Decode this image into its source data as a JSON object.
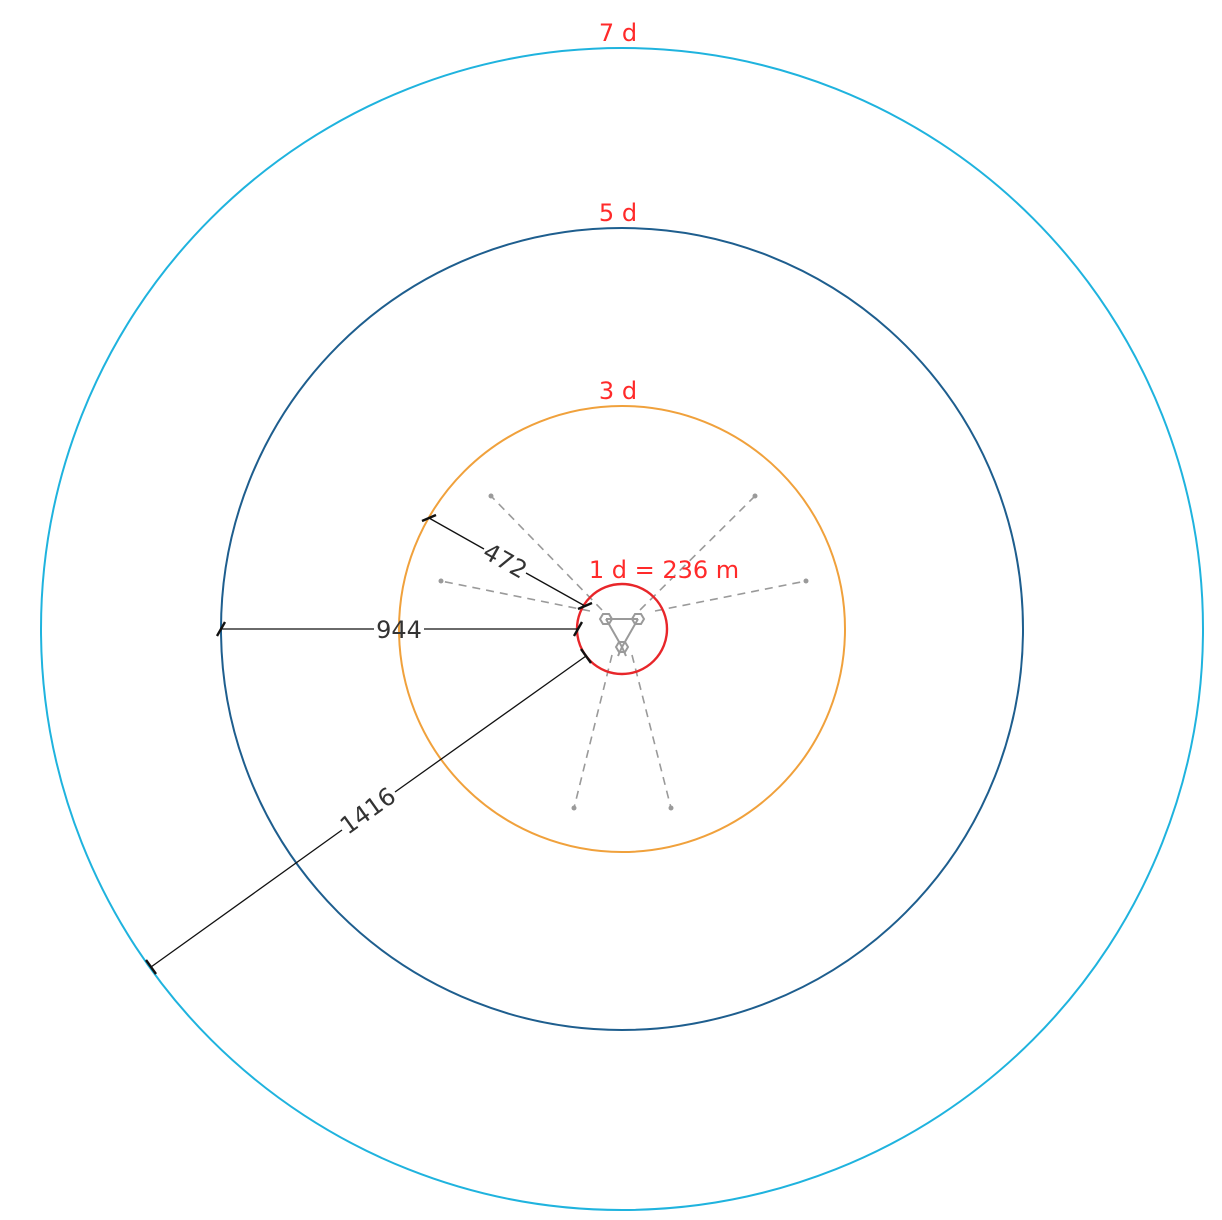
{
  "colors": {
    "ring_1d": "#e8262a",
    "ring_3d": "#f0a13c",
    "ring_5d": "#1e5e8e",
    "ring_7d": "#1fb3de",
    "label": "#ff2a2a",
    "dimension": "#111111",
    "guide": "#9a9a9a"
  },
  "rings": [
    {
      "multiple": 1,
      "label": "1 d = 236 m",
      "radius_m": 236
    },
    {
      "multiple": 3,
      "label": "3 d",
      "radius_m": 708
    },
    {
      "multiple": 5,
      "label": "5 d",
      "radius_m": 1180
    },
    {
      "multiple": 7,
      "label": "7 d",
      "radius_m": 1652
    }
  ],
  "dimensions": [
    {
      "value": "472",
      "value_m": 472,
      "from_ring": 1,
      "to_ring": 3
    },
    {
      "value": "944",
      "value_m": 944,
      "from_ring": 1,
      "to_ring": 5
    },
    {
      "value": "1416",
      "value_m": 1416,
      "from_ring": 1,
      "to_ring": 7
    }
  ],
  "center_symbol": "turbine-cluster-icon",
  "guide_lines": "dashed-radials"
}
